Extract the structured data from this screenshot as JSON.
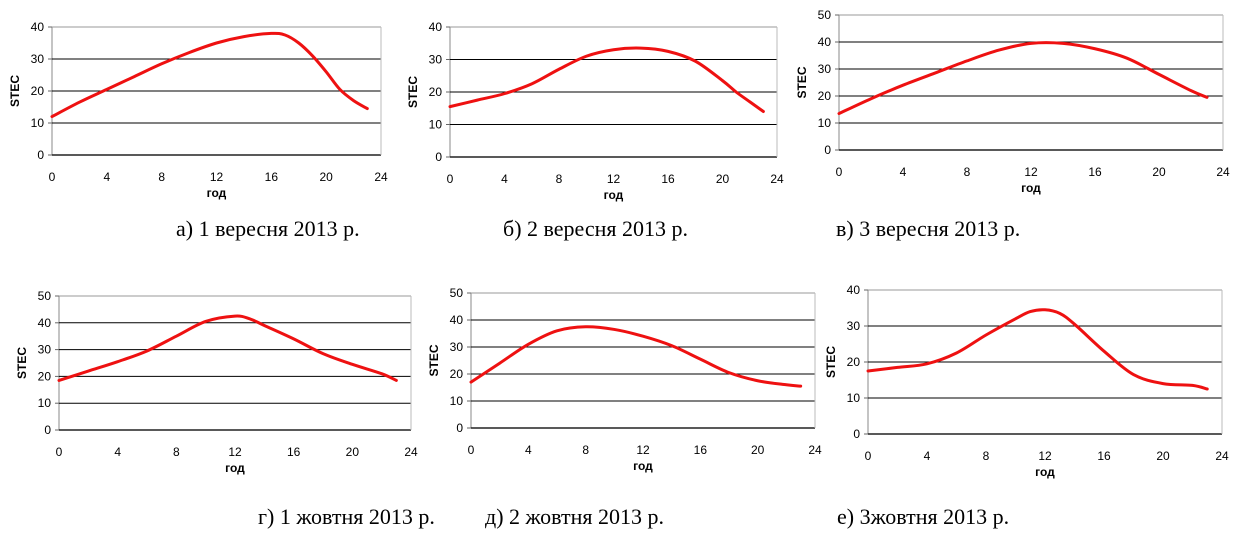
{
  "colors": {
    "line": "#ee1111",
    "grid": "#000000"
  },
  "chart_data": [
    {
      "type": "line",
      "caption": "а) 1 вересня 2013 р.",
      "xlabel": "год",
      "ylabel": "STEC",
      "xlim": [
        0,
        24
      ],
      "ylim": [
        0,
        40
      ],
      "xticks": [
        0,
        4,
        8,
        12,
        16,
        20,
        24
      ],
      "yticks": [
        0,
        10,
        20,
        30,
        40
      ],
      "grid": true,
      "series": [
        {
          "x": [
            0,
            2,
            4,
            6,
            8,
            10,
            12,
            14,
            16,
            17,
            18,
            19,
            20,
            21,
            22,
            23
          ],
          "y": [
            12,
            16.5,
            20.5,
            24.5,
            28.5,
            32,
            35,
            37,
            38,
            37.5,
            35,
            31,
            26,
            20.5,
            17,
            14.5
          ]
        }
      ]
    },
    {
      "type": "line",
      "caption": "б) 2 вересня 2013 р.",
      "xlabel": "год",
      "ylabel": "STEC",
      "xlim": [
        0,
        24
      ],
      "ylim": [
        0,
        40
      ],
      "xticks": [
        0,
        4,
        8,
        12,
        16,
        20,
        24
      ],
      "yticks": [
        0,
        10,
        20,
        30,
        40
      ],
      "grid": true,
      "series": [
        {
          "x": [
            0,
            2,
            4,
            6,
            8,
            10,
            12,
            14,
            16,
            18,
            20,
            21,
            22,
            23
          ],
          "y": [
            15.5,
            17.5,
            19.5,
            22.5,
            27,
            31,
            33,
            33.5,
            32.5,
            29.5,
            23.5,
            20,
            17,
            14
          ]
        }
      ]
    },
    {
      "type": "line",
      "caption": "в)  3 вересня 2013 р.",
      "xlabel": "год",
      "ylabel": "STEC",
      "xlim": [
        0,
        24
      ],
      "ylim": [
        0,
        50
      ],
      "xticks": [
        0,
        4,
        8,
        12,
        16,
        20,
        24
      ],
      "yticks": [
        0,
        10,
        20,
        30,
        40,
        50
      ],
      "grid": true,
      "series": [
        {
          "x": [
            0,
            2,
            4,
            6,
            8,
            10,
            12,
            14,
            16,
            18,
            20,
            22,
            23
          ],
          "y": [
            13.5,
            19,
            24,
            28.5,
            33,
            37,
            39.5,
            39.5,
            37.5,
            34,
            28,
            22,
            19.5
          ]
        }
      ]
    },
    {
      "type": "line",
      "caption": "г) 1 жовтня 2013 р.",
      "xlabel": "год",
      "ylabel": "STEC",
      "xlim": [
        0,
        24
      ],
      "ylim": [
        0,
        50
      ],
      "xticks": [
        0,
        4,
        8,
        12,
        16,
        20,
        24
      ],
      "yticks": [
        0,
        10,
        20,
        30,
        40,
        50
      ],
      "grid": true,
      "series": [
        {
          "x": [
            0,
            2,
            4,
            6,
            8,
            10,
            12,
            13,
            14,
            16,
            18,
            20,
            22,
            23
          ],
          "y": [
            18.5,
            22,
            25.5,
            29.5,
            35,
            40.5,
            42.5,
            41.5,
            39,
            34,
            28.5,
            24.5,
            21,
            18.5
          ]
        }
      ]
    },
    {
      "type": "line",
      "caption": "д) 2 жовтня 2013 р.",
      "xlabel": "год",
      "ylabel": "STEC",
      "xlim": [
        0,
        24
      ],
      "ylim": [
        0,
        50
      ],
      "xticks": [
        0,
        4,
        8,
        12,
        16,
        20,
        24
      ],
      "yticks": [
        0,
        10,
        20,
        30,
        40,
        50
      ],
      "grid": true,
      "series": [
        {
          "x": [
            0,
            2,
            4,
            6,
            8,
            10,
            12,
            14,
            16,
            18,
            20,
            22,
            23
          ],
          "y": [
            17,
            24,
            31,
            36,
            37.5,
            36.5,
            34,
            30.5,
            25.5,
            20.5,
            17.5,
            16,
            15.5
          ]
        }
      ]
    },
    {
      "type": "line",
      "caption": "е) 3жовтня 2013 р.",
      "xlabel": "год",
      "ylabel": "STEC",
      "xlim": [
        0,
        24
      ],
      "ylim": [
        0,
        40
      ],
      "xticks": [
        0,
        4,
        8,
        12,
        16,
        20,
        24
      ],
      "yticks": [
        0,
        10,
        20,
        30,
        40
      ],
      "grid": true,
      "series": [
        {
          "x": [
            0,
            2,
            4,
            6,
            8,
            10,
            11,
            12,
            13,
            14,
            16,
            18,
            20,
            22,
            23
          ],
          "y": [
            17.5,
            18.5,
            19.5,
            22.5,
            27.5,
            32,
            34,
            34.5,
            33.5,
            30.5,
            23,
            16.5,
            14,
            13.5,
            12.5
          ]
        }
      ]
    }
  ]
}
